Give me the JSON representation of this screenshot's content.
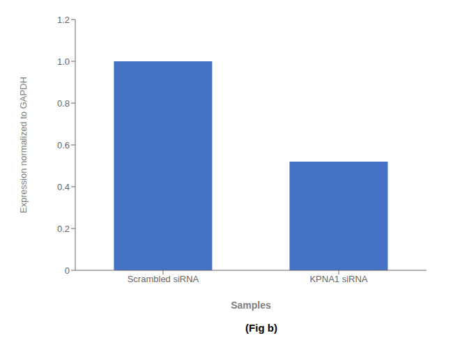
{
  "chart_data": {
    "type": "bar",
    "categories": [
      "Scrambled siRNA",
      "KPNA1 siRNA"
    ],
    "values": [
      1.0,
      0.52
    ],
    "color": "#4472c4",
    "xlabel": "Samples",
    "ylabel": "Expression normalized to GAPDH",
    "ylim": [
      0,
      1.2
    ],
    "yticks": [
      0,
      0.2,
      0.4,
      0.6,
      0.8,
      {
        "value": 1.0,
        "label": "1.0"
      },
      1.2
    ],
    "annotations": [
      "(Fig b)"
    ],
    "grid": false
  }
}
